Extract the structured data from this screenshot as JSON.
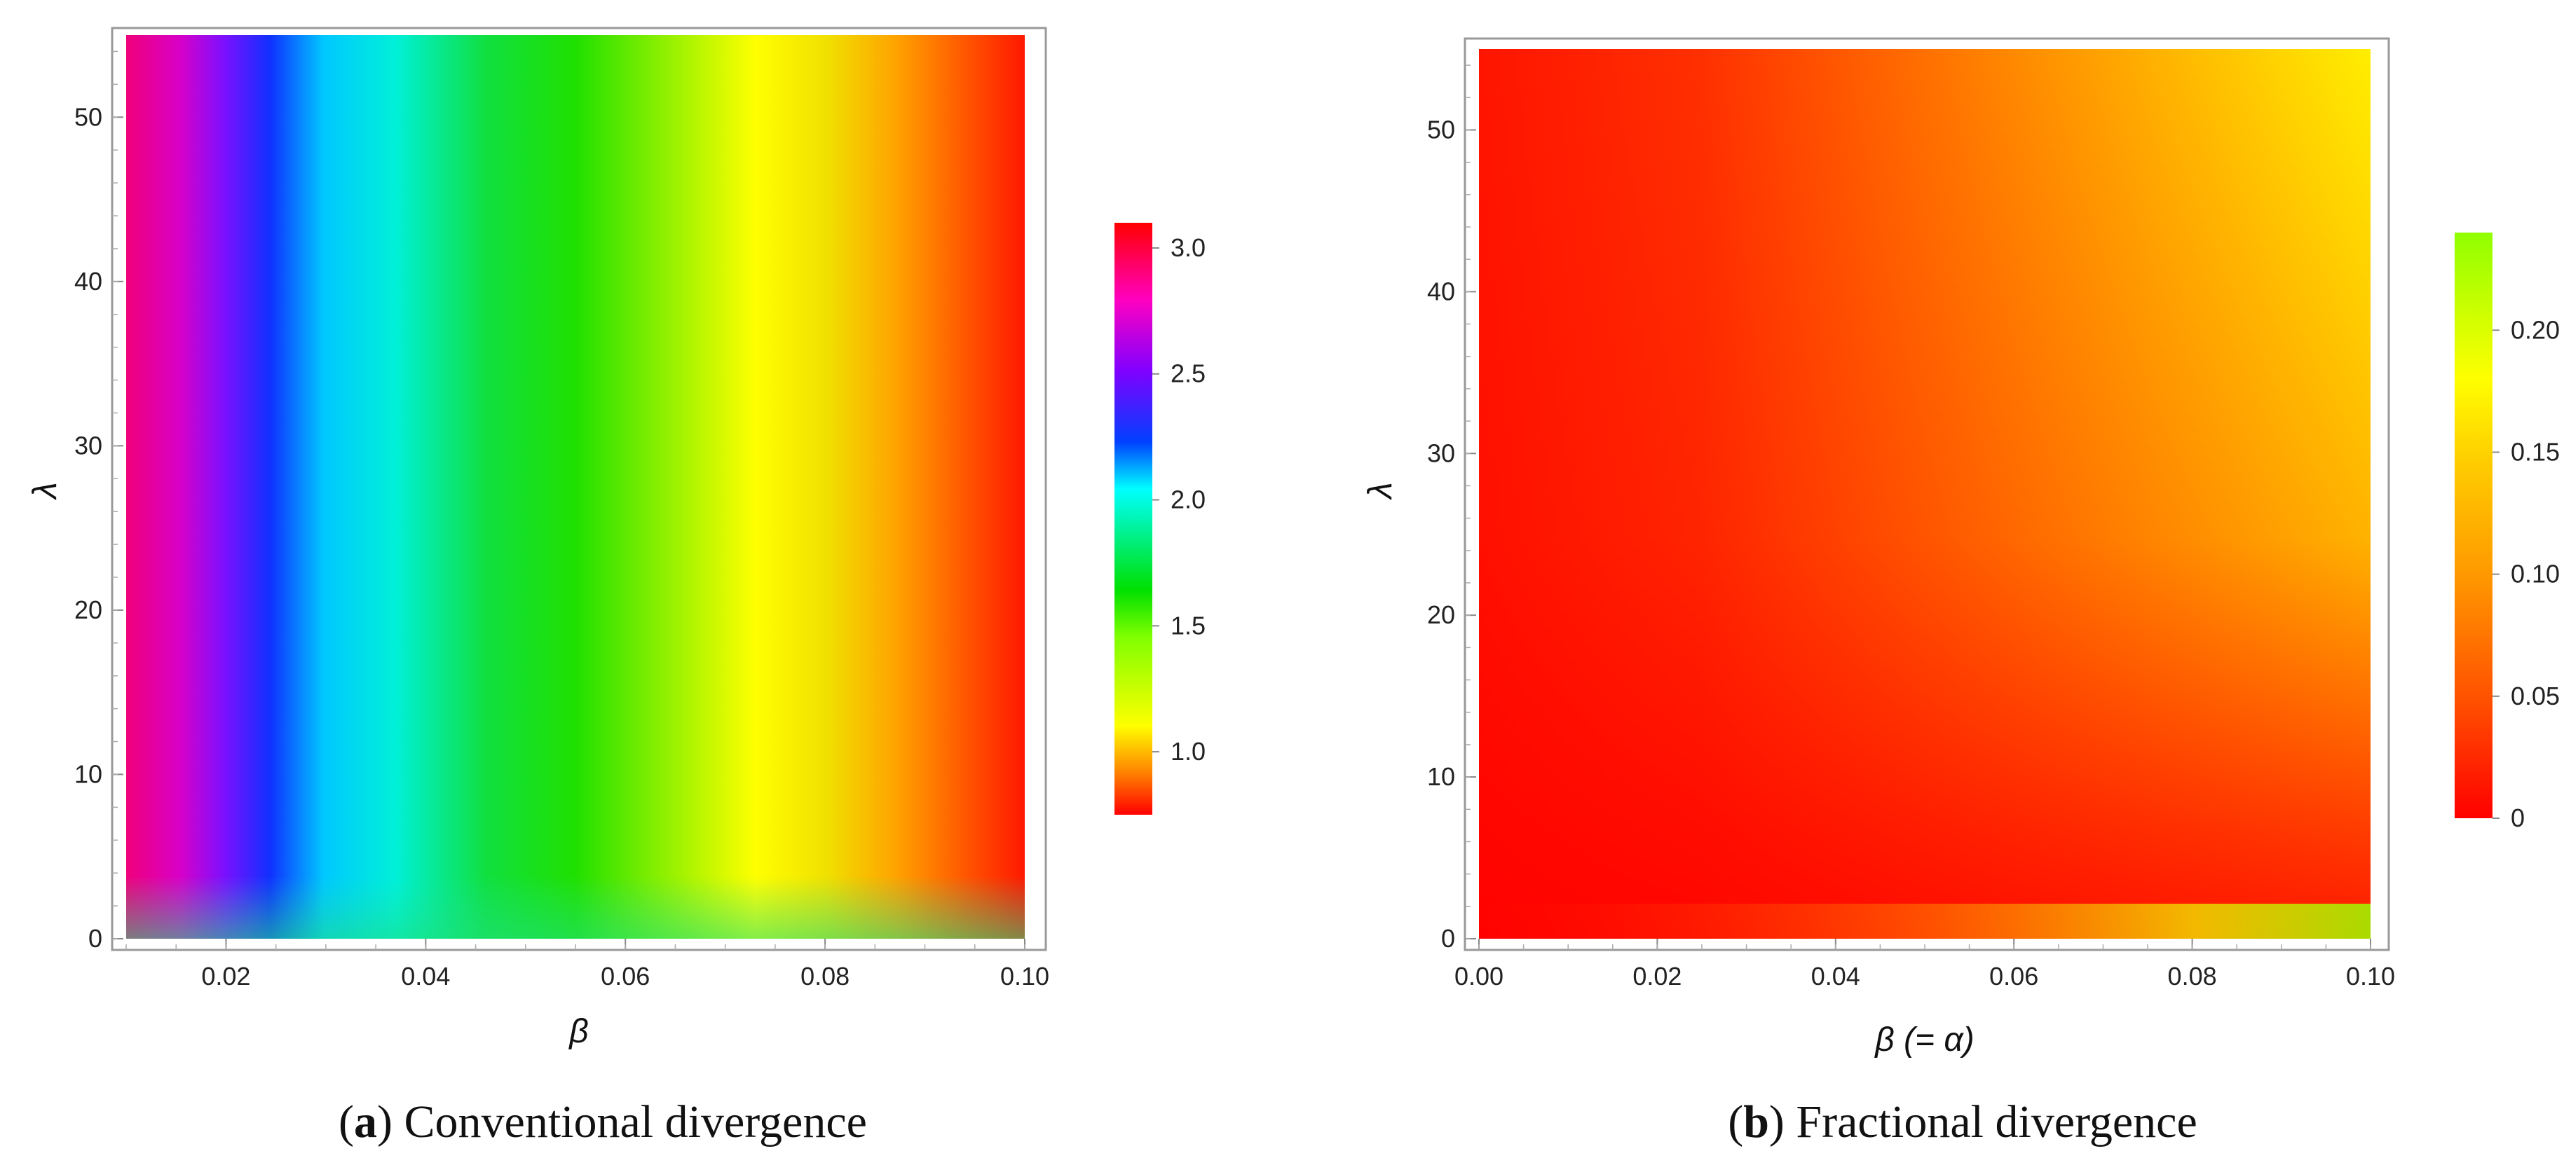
{
  "chart_data": [
    {
      "type": "heatmap",
      "caption_letter": "a",
      "caption_text": " Conventional divergence",
      "xlabel": "β",
      "ylabel": "λ",
      "xlim": [
        0.01,
        0.1
      ],
      "ylim": [
        0,
        55
      ],
      "xticks": [
        "0.02",
        "0.04",
        "0.06",
        "0.08",
        "0.10"
      ],
      "xtick_values": [
        0.02,
        0.04,
        0.06,
        0.08,
        0.1
      ],
      "yticks": [
        "0",
        "10",
        "20",
        "30",
        "40",
        "50"
      ],
      "ytick_values": [
        0,
        10,
        20,
        30,
        40,
        50
      ],
      "colorbar": {
        "range": [
          0.75,
          3.1
        ],
        "ticks": [
          "1.0",
          "1.5",
          "2.0",
          "2.5",
          "3.0"
        ],
        "tick_values": [
          1.0,
          1.5,
          2.0,
          2.5,
          3.0
        ],
        "colors_low_to_high": [
          "#ff0000",
          "#ff8000",
          "#ffff00",
          "#a0ff00",
          "#00e000",
          "#00ffff",
          "#0040ff",
          "#8000ff",
          "#ff00c0",
          "#ff0000"
        ]
      },
      "profile_along_x": {
        "x": [
          0.01,
          0.015,
          0.02,
          0.025,
          0.03,
          0.04,
          0.05,
          0.06,
          0.07,
          0.08,
          0.09,
          0.1
        ],
        "value": [
          3.0,
          2.65,
          2.35,
          2.05,
          1.9,
          1.7,
          1.5,
          1.3,
          1.1,
          0.95,
          0.85,
          0.75
        ]
      }
    },
    {
      "type": "heatmap",
      "caption_letter": "b",
      "caption_text": " Fractional divergence",
      "xlabel": "β (= α)",
      "ylabel": "λ",
      "xlim": [
        0.0,
        0.1
      ],
      "ylim": [
        0,
        55
      ],
      "xticks": [
        "0.00",
        "0.02",
        "0.04",
        "0.06",
        "0.08",
        "0.10"
      ],
      "xtick_values": [
        0.0,
        0.02,
        0.04,
        0.06,
        0.08,
        0.1
      ],
      "yticks": [
        "0",
        "10",
        "20",
        "30",
        "40",
        "50"
      ],
      "ytick_values": [
        0,
        10,
        20,
        30,
        40,
        50
      ],
      "colorbar": {
        "range": [
          0.0,
          0.24
        ],
        "ticks": [
          "0",
          "0.05",
          "0.10",
          "0.15",
          "0.20"
        ],
        "tick_values": [
          0,
          0.05,
          0.1,
          0.15,
          0.2
        ],
        "colors_low_to_high": [
          "#ff0000",
          "#ff6000",
          "#ffa000",
          "#ffd000",
          "#ffff00",
          "#90ff00"
        ]
      },
      "profile_along_x_at_top": {
        "x": [
          0.0,
          0.02,
          0.04,
          0.06,
          0.08,
          0.1
        ],
        "value": [
          0.0,
          0.03,
          0.07,
          0.11,
          0.15,
          0.19
        ]
      }
    }
  ]
}
